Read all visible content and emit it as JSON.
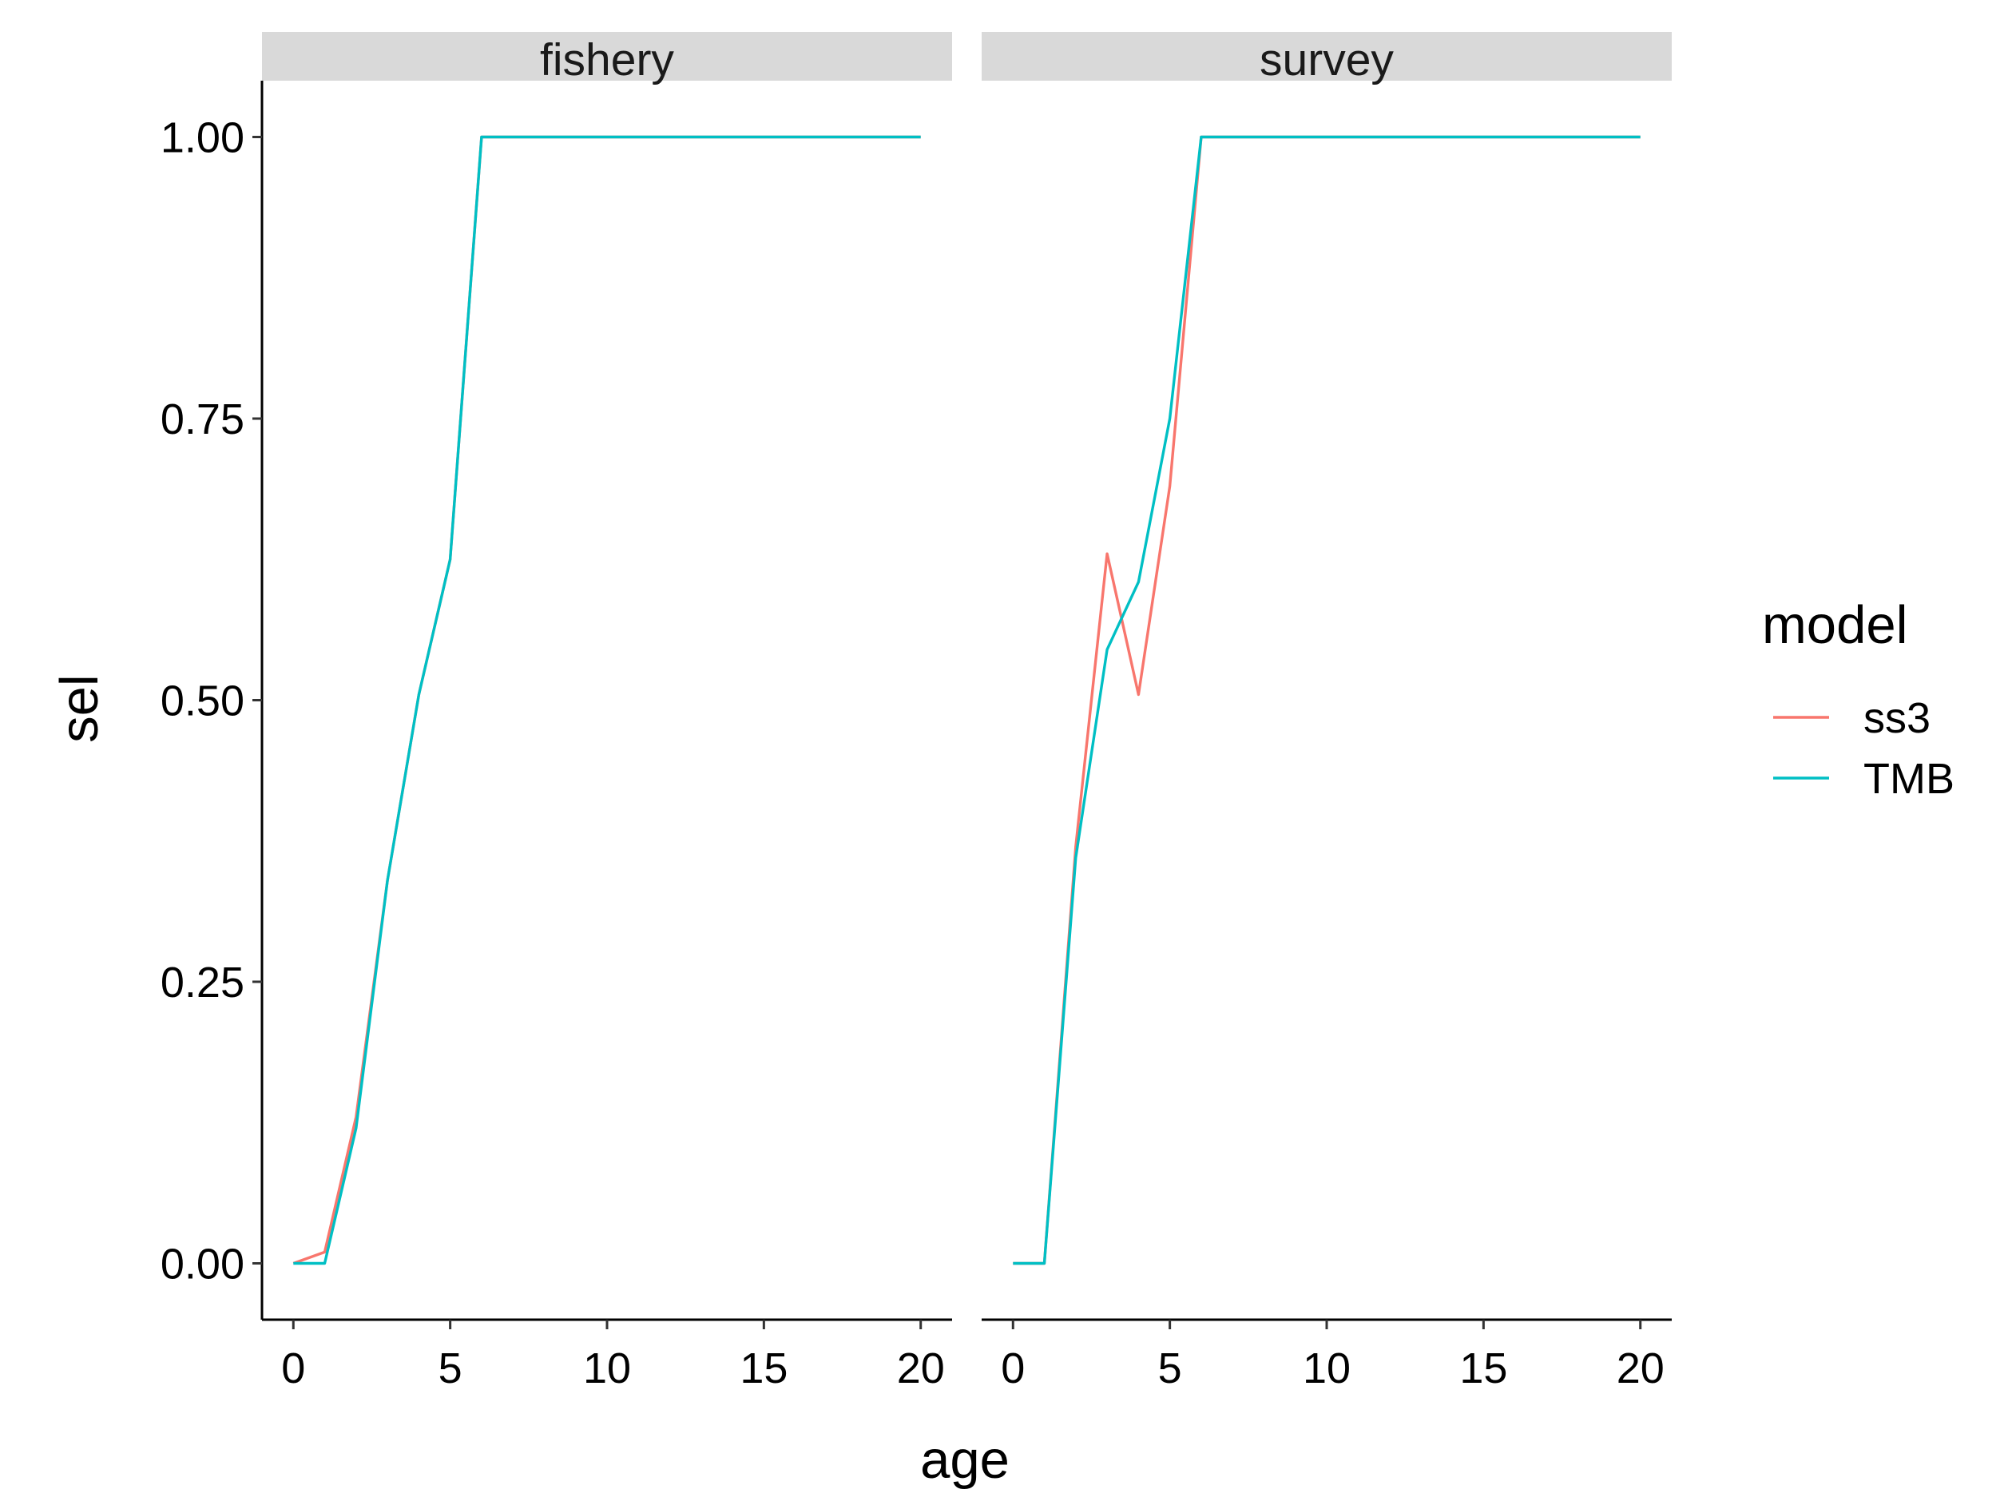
{
  "chart_data": {
    "type": "line",
    "xlabel": "age",
    "ylabel": "sel",
    "xlim": [
      -1,
      21
    ],
    "ylim": [
      -0.05,
      1.05
    ],
    "x_ticks": [
      0,
      5,
      10,
      15,
      20
    ],
    "y_ticks": [
      0.0,
      0.25,
      0.5,
      0.75,
      1.0
    ],
    "x_tick_labels": [
      "0",
      "5",
      "10",
      "15",
      "20"
    ],
    "y_tick_labels": [
      "0.00",
      "0.25",
      "0.50",
      "0.75",
      "1.00"
    ],
    "grid": false,
    "legend": {
      "title": "model",
      "position": "right",
      "entries": [
        {
          "name": "ss3",
          "color": "#F8766D"
        },
        {
          "name": "TMB",
          "color": "#00BFC4"
        }
      ]
    },
    "panels": [
      {
        "strip": "fishery",
        "series": [
          {
            "name": "ss3",
            "color": "#F8766D",
            "x": [
              0,
              1,
              2,
              3,
              4,
              5,
              6,
              7,
              8,
              9,
              10,
              11,
              12,
              13,
              14,
              15,
              16,
              17,
              18,
              19,
              20
            ],
            "y": [
              0,
              0.01,
              0.13,
              0.34,
              0.505,
              0.625,
              1,
              1,
              1,
              1,
              1,
              1,
              1,
              1,
              1,
              1,
              1,
              1,
              1,
              1,
              1
            ]
          },
          {
            "name": "TMB",
            "color": "#00BFC4",
            "x": [
              0,
              1,
              2,
              3,
              4,
              5,
              6,
              7,
              8,
              9,
              10,
              11,
              12,
              13,
              14,
              15,
              16,
              17,
              18,
              19,
              20
            ],
            "y": [
              0,
              0,
              0.12,
              0.34,
              0.505,
              0.625,
              1,
              1,
              1,
              1,
              1,
              1,
              1,
              1,
              1,
              1,
              1,
              1,
              1,
              1,
              1
            ]
          }
        ]
      },
      {
        "strip": "survey",
        "series": [
          {
            "name": "ss3",
            "color": "#F8766D",
            "x": [
              0,
              1,
              2,
              3,
              4,
              5,
              6,
              7,
              8,
              9,
              10,
              11,
              12,
              13,
              14,
              15,
              16,
              17,
              18,
              19,
              20
            ],
            "y": [
              0,
              0,
              0.37,
              0.63,
              0.505,
              0.69,
              1,
              1,
              1,
              1,
              1,
              1,
              1,
              1,
              1,
              1,
              1,
              1,
              1,
              1,
              1
            ]
          },
          {
            "name": "TMB",
            "color": "#00BFC4",
            "x": [
              0,
              1,
              2,
              3,
              4,
              5,
              6,
              7,
              8,
              9,
              10,
              11,
              12,
              13,
              14,
              15,
              16,
              17,
              18,
              19,
              20
            ],
            "y": [
              0,
              0,
              0.36,
              0.545,
              0.605,
              0.75,
              1,
              1,
              1,
              1,
              1,
              1,
              1,
              1,
              1,
              1,
              1,
              1,
              1,
              1,
              1
            ]
          }
        ]
      }
    ]
  }
}
